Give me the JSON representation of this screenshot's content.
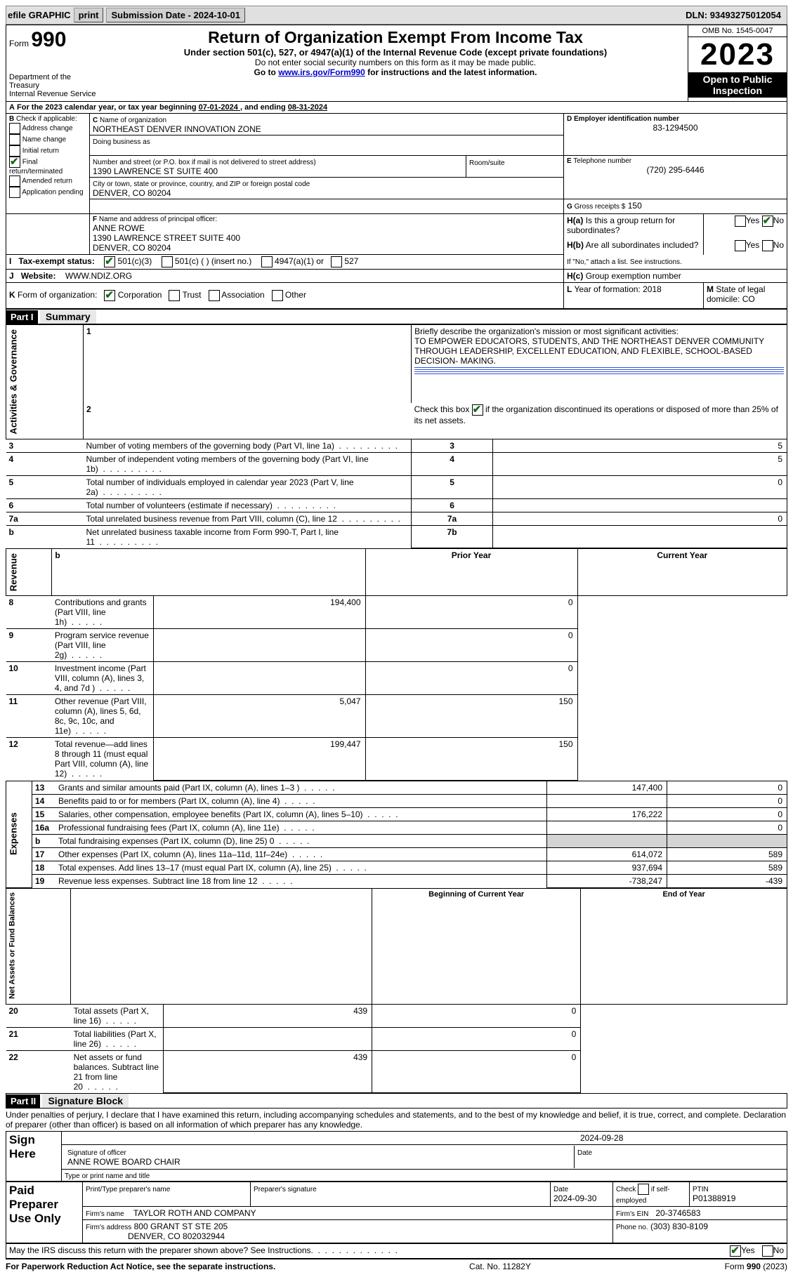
{
  "topbar": {
    "efile": "efile GRAPHIC",
    "print": "print",
    "submission": "Submission Date - 2024-10-01",
    "dln_label": "DLN:",
    "dln": "93493275012054"
  },
  "header": {
    "form_label": "Form",
    "form_num": "990",
    "dept": "Department of the Treasury",
    "irs": "Internal Revenue Service",
    "title": "Return of Organization Exempt From Income Tax",
    "subtitle": "Under section 501(c), 527, or 4947(a)(1) of the Internal Revenue Code (except private foundations)",
    "warn": "Do not enter social security numbers on this form as it may be made public.",
    "goto": "Go to ",
    "goto_link": "www.irs.gov/Form990",
    "goto_rest": " for instructions and the latest information.",
    "omb": "OMB No. 1545-0047",
    "year": "2023",
    "public": "Open to Public Inspection"
  },
  "A": {
    "line": "For the 2023 calendar year, or tax year beginning ",
    "begin": "07-01-2024    ",
    "mid": ", and ending ",
    "end": "08-31-2024"
  },
  "B": {
    "label": "Check if applicable:",
    "items": [
      "Address change",
      "Name change",
      "Initial return",
      "Final return/terminated",
      "Amended return",
      "Application pending"
    ],
    "checked": [
      false,
      false,
      false,
      true,
      false,
      false
    ]
  },
  "C": {
    "name_label": "Name of organization",
    "name": "NORTHEAST DENVER INNOVATION ZONE",
    "dba_label": "Doing business as",
    "street_label": "Number and street (or P.O. box if mail is not delivered to street address)",
    "street": "1390 LAWRENCE ST SUITE 400",
    "room_label": "Room/suite",
    "city_label": "City or town, state or province, country, and ZIP or foreign postal code",
    "city": "DENVER, CO  80204"
  },
  "D": {
    "label": "Employer identification number",
    "val": "83-1294500"
  },
  "E": {
    "label": "Telephone number",
    "val": "(720) 295-6446"
  },
  "G": {
    "label": "Gross receipts $",
    "val": "150"
  },
  "F": {
    "label": "Name and address of principal officer:",
    "name": "ANNE ROWE",
    "addr1": "1390 LAWRENCE STREET SUITE 400",
    "addr2": "DENVER, CO  80204"
  },
  "H": {
    "a_label": "Is this a group return for subordinates?",
    "a_yes": "Yes",
    "a_no": "No",
    "a_val": "No",
    "b_label": "Are all subordinates included?",
    "b_yes": "Yes",
    "b_no": "No",
    "b_note": "If \"No,\" attach a list. See instructions.",
    "c_label": "Group exemption number"
  },
  "I": {
    "label": "Tax-exempt status:",
    "c3": "501(c)(3)",
    "c": "501(c) (  ) (insert no.)",
    "a1": "4947(a)(1) or",
    "s527": "527",
    "checked": "c3"
  },
  "J": {
    "label": "Website:",
    "val": "WWW.NDIZ.ORG"
  },
  "K": {
    "label": "Form of organization:",
    "opts": [
      "Corporation",
      "Trust",
      "Association",
      "Other"
    ],
    "checked": 0
  },
  "L": {
    "label": "Year of formation:",
    "val": "2018"
  },
  "M": {
    "label": "State of legal domicile:",
    "val": "CO"
  },
  "part1": {
    "title_bar": "Part I",
    "title": "Summary",
    "q1_label": "Briefly describe the organization's mission or most significant activities:",
    "q1": "TO EMPOWER EDUCATORS, STUDENTS, AND THE NORTHEAST DENVER COMMUNITY THROUGH LEADERSHIP, EXCELLENT EDUCATION, AND FLEXIBLE, SCHOOL-BASED DECISION- MAKING.",
    "q2": "Check this box      if the organization discontinued its operations or disposed of more than 25% of its net assets.",
    "sections": {
      "gov": "Activities & Governance",
      "rev": "Revenue",
      "exp": "Expenses",
      "net": "Net Assets or Fund Balances"
    },
    "gov_rows": [
      {
        "n": "3",
        "label": "Number of voting members of the governing body (Part VI, line 1a)",
        "col": "3",
        "val": "5"
      },
      {
        "n": "4",
        "label": "Number of independent voting members of the governing body (Part VI, line 1b)",
        "col": "4",
        "val": "5"
      },
      {
        "n": "5",
        "label": "Total number of individuals employed in calendar year 2023 (Part V, line 2a)",
        "col": "5",
        "val": "0"
      },
      {
        "n": "6",
        "label": "Total number of volunteers (estimate if necessary)",
        "col": "6",
        "val": ""
      },
      {
        "n": "7a",
        "label": "Total unrelated business revenue from Part VIII, column (C), line 12",
        "col": "7a",
        "val": "0"
      },
      {
        "n": "",
        "label": "Net unrelated business taxable income from Form 990-T, Part I, line 11",
        "col": "7b",
        "val": ""
      }
    ],
    "col_headers": {
      "prior": "Prior Year",
      "current": "Current Year",
      "boy": "Beginning of Current Year",
      "eoy": "End of Year"
    },
    "rev_rows": [
      {
        "n": "8",
        "label": "Contributions and grants (Part VIII, line 1h)",
        "p": "194,400",
        "c": "0"
      },
      {
        "n": "9",
        "label": "Program service revenue (Part VIII, line 2g)",
        "p": "",
        "c": "0"
      },
      {
        "n": "10",
        "label": "Investment income (Part VIII, column (A), lines 3, 4, and 7d )",
        "p": "",
        "c": "0"
      },
      {
        "n": "11",
        "label": "Other revenue (Part VIII, column (A), lines 5, 6d, 8c, 9c, 10c, and 11e)",
        "p": "5,047",
        "c": "150"
      },
      {
        "n": "12",
        "label": "Total revenue—add lines 8 through 11 (must equal Part VIII, column (A), line 12)",
        "p": "199,447",
        "c": "150"
      }
    ],
    "exp_rows": [
      {
        "n": "13",
        "label": "Grants and similar amounts paid (Part IX, column (A), lines 1–3 )",
        "p": "147,400",
        "c": "0"
      },
      {
        "n": "14",
        "label": "Benefits paid to or for members (Part IX, column (A), line 4)",
        "p": "",
        "c": "0"
      },
      {
        "n": "15",
        "label": "Salaries, other compensation, employee benefits (Part IX, column (A), lines 5–10)",
        "p": "176,222",
        "c": "0"
      },
      {
        "n": "16a",
        "label": "Professional fundraising fees (Part IX, column (A), line 11e)",
        "p": "",
        "c": "0"
      },
      {
        "n": "b",
        "label": "Total fundraising expenses (Part IX, column (D), line 25) 0",
        "p": "GRAY",
        "c": "GRAY"
      },
      {
        "n": "17",
        "label": "Other expenses (Part IX, column (A), lines 11a–11d, 11f–24e)",
        "p": "614,072",
        "c": "589"
      },
      {
        "n": "18",
        "label": "Total expenses. Add lines 13–17 (must equal Part IX, column (A), line 25)",
        "p": "937,694",
        "c": "589"
      },
      {
        "n": "19",
        "label": "Revenue less expenses. Subtract line 18 from line 12",
        "p": "-738,247",
        "c": "-439"
      }
    ],
    "net_rows": [
      {
        "n": "20",
        "label": "Total assets (Part X, line 16)",
        "p": "439",
        "c": "0"
      },
      {
        "n": "21",
        "label": "Total liabilities (Part X, line 26)",
        "p": "",
        "c": "0"
      },
      {
        "n": "22",
        "label": "Net assets or fund balances. Subtract line 21 from line 20",
        "p": "439",
        "c": "0"
      }
    ]
  },
  "part2": {
    "title_bar": "Part II",
    "title": "Signature Block",
    "declaration": "Under penalties of perjury, I declare that I have examined this return, including accompanying schedules and statements, and to the best of my knowledge and belief, it is true, correct, and complete. Declaration of preparer (other than officer) is based on all information of which preparer has any knowledge."
  },
  "sign": {
    "here_label": "Sign Here",
    "sig_label": "Signature of officer",
    "date_label": "Date",
    "date": "2024-09-28",
    "name": "ANNE ROWE  BOARD CHAIR",
    "name_label": "Type or print name and title"
  },
  "paid": {
    "label": "Paid Preparer Use Only",
    "print_label": "Print/Type preparer's name",
    "sig_label": "Preparer's signature",
    "date_label": "Date",
    "date": "2024-09-30",
    "self_label": "Check        if self-employed",
    "ptin_label": "PTIN",
    "ptin": "P01388919",
    "firm_name_label": "Firm's name",
    "firm_name": "TAYLOR ROTH AND COMPANY",
    "firm_ein_label": "Firm's EIN",
    "firm_ein": "20-3746583",
    "firm_addr_label": "Firm's address",
    "firm_addr1": "800 GRANT ST STE 205",
    "firm_addr2": "DENVER, CO  802032944",
    "phone_label": "Phone no.",
    "phone": "(303) 830-8109"
  },
  "discuss": {
    "q": "May the IRS discuss this return with the preparer shown above? See Instructions.",
    "yes": "Yes",
    "no": "No",
    "val": "Yes"
  },
  "footer": {
    "left": "For Paperwork Reduction Act Notice, see the separate instructions.",
    "mid": "Cat. No. 11282Y",
    "right": "Form 990 (2023)"
  }
}
